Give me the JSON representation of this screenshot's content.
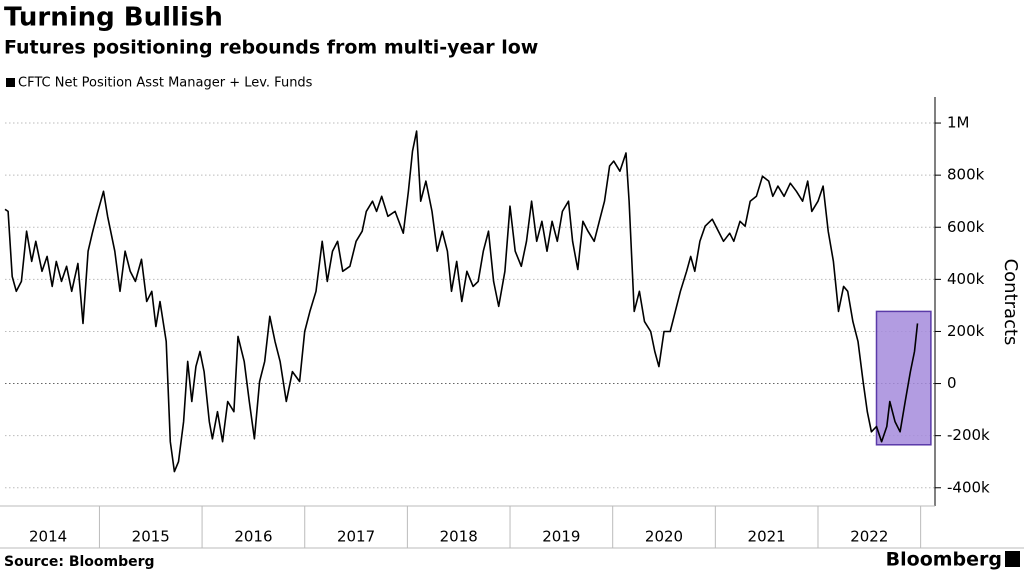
{
  "chart_data": {
    "type": "line",
    "title": "Turning Bullish",
    "subtitle": "Futures positioning rebounds from multi-year low",
    "y_label": "Contracts",
    "source": "Source: Bloomberg",
    "brand": "Bloomberg",
    "grid": true,
    "legend": "top-left",
    "x": [
      2014.08,
      2014.11,
      2014.15,
      2014.19,
      2014.24,
      2014.29,
      2014.34,
      2014.38,
      2014.44,
      2014.49,
      2014.54,
      2014.58,
      2014.63,
      2014.68,
      2014.73,
      2014.79,
      2014.84,
      2014.89,
      2014.93,
      2014.98,
      2015.04,
      2015.08,
      2015.15,
      2015.2,
      2015.25,
      2015.3,
      2015.35,
      2015.41,
      2015.46,
      2015.51,
      2015.55,
      2015.59,
      2015.65,
      2015.69,
      2015.73,
      2015.77,
      2015.82,
      2015.86,
      2015.9,
      2015.94,
      2015.98,
      2016.02,
      2016.07,
      2016.1,
      2016.15,
      2016.2,
      2016.25,
      2016.31,
      2016.35,
      2016.41,
      2016.46,
      2016.51,
      2016.56,
      2016.61,
      2016.66,
      2016.71,
      2016.76,
      2016.82,
      2016.88,
      2016.95,
      2017.0,
      2017.05,
      2017.11,
      2017.17,
      2017.22,
      2017.27,
      2017.32,
      2017.37,
      2017.44,
      2017.5,
      2017.56,
      2017.6,
      2017.66,
      2017.7,
      2017.75,
      2017.81,
      2017.88,
      2017.96,
      2018.01,
      2018.05,
      2018.09,
      2018.13,
      2018.18,
      2018.24,
      2018.29,
      2018.34,
      2018.39,
      2018.43,
      2018.48,
      2018.53,
      2018.58,
      2018.64,
      2018.69,
      2018.74,
      2018.79,
      2018.84,
      2018.89,
      2018.95,
      2019.0,
      2019.05,
      2019.11,
      2019.16,
      2019.21,
      2019.26,
      2019.31,
      2019.36,
      2019.41,
      2019.46,
      2019.51,
      2019.57,
      2019.61,
      2019.66,
      2019.71,
      2019.76,
      2019.82,
      2019.87,
      2019.92,
      2019.97,
      2020.01,
      2020.07,
      2020.13,
      2020.16,
      2020.21,
      2020.26,
      2020.31,
      2020.37,
      2020.41,
      2020.45,
      2020.5,
      2020.56,
      2020.61,
      2020.66,
      2020.72,
      2020.76,
      2020.8,
      2020.85,
      2020.9,
      2020.97,
      2021.03,
      2021.08,
      2021.14,
      2021.18,
      2021.24,
      2021.29,
      2021.34,
      2021.4,
      2021.46,
      2021.52,
      2021.56,
      2021.61,
      2021.67,
      2021.73,
      2021.79,
      2021.85,
      2021.9,
      2021.94,
      2022.0,
      2022.05,
      2022.1,
      2022.15,
      2022.2,
      2022.25,
      2022.29,
      2022.34,
      2022.39,
      2022.44,
      2022.48,
      2022.52,
      2022.57,
      2022.62,
      2022.67,
      2022.7,
      2022.75,
      2022.8,
      2022.85,
      2022.9,
      2022.94,
      2022.97
    ],
    "series": [
      {
        "name": "CFTC Net Position Asst Manager + Lev. Funds",
        "color": "#000000",
        "values": [
          669000,
          661000,
          411000,
          354000,
          392000,
          585000,
          469000,
          546000,
          431000,
          488000,
          373000,
          469000,
          392000,
          450000,
          354000,
          461000,
          231000,
          508000,
          577000,
          654000,
          738000,
          642000,
          508000,
          354000,
          508000,
          431000,
          392000,
          477000,
          315000,
          354000,
          219000,
          315000,
          162000,
          -223000,
          -338000,
          -300000,
          -146000,
          85000,
          -69000,
          65000,
          123000,
          46000,
          -146000,
          -212000,
          -108000,
          -223000,
          -69000,
          -108000,
          181000,
          85000,
          -69000,
          -212000,
          8000,
          85000,
          258000,
          162000,
          85000,
          -69000,
          46000,
          8000,
          200000,
          277000,
          354000,
          546000,
          392000,
          508000,
          546000,
          431000,
          450000,
          546000,
          585000,
          661000,
          700000,
          661000,
          719000,
          642000,
          661000,
          577000,
          738000,
          892000,
          969000,
          700000,
          777000,
          661000,
          508000,
          585000,
          508000,
          354000,
          469000,
          315000,
          431000,
          373000,
          392000,
          508000,
          585000,
          392000,
          296000,
          431000,
          681000,
          508000,
          450000,
          546000,
          700000,
          546000,
          623000,
          508000,
          623000,
          546000,
          661000,
          700000,
          546000,
          438000,
          623000,
          585000,
          546000,
          623000,
          700000,
          835000,
          854000,
          815000,
          885000,
          700000,
          277000,
          354000,
          238000,
          200000,
          123000,
          65000,
          200000,
          200000,
          277000,
          354000,
          431000,
          488000,
          431000,
          546000,
          604000,
          631000,
          585000,
          546000,
          577000,
          546000,
          623000,
          604000,
          700000,
          719000,
          796000,
          777000,
          719000,
          758000,
          719000,
          769000,
          738000,
          700000,
          777000,
          661000,
          700000,
          758000,
          585000,
          469000,
          277000,
          373000,
          354000,
          238000,
          162000,
          8000,
          -108000,
          -185000,
          -165000,
          -223000,
          -165000,
          -69000,
          -146000,
          -185000,
          -69000,
          46000,
          123000,
          231000
        ]
      }
    ],
    "highlight": {
      "x": [
        2022.57,
        2023.1
      ],
      "y": [
        -235000,
        277000
      ],
      "color": "#a58bdc"
    },
    "xlim": [
      2014.08,
      2023.14
    ],
    "xticks": [
      {
        "value": 2014.5,
        "label": "2014"
      },
      {
        "value": 2015.5,
        "label": "2015"
      },
      {
        "value": 2016.5,
        "label": "2016"
      },
      {
        "value": 2017.5,
        "label": "2017"
      },
      {
        "value": 2018.5,
        "label": "2018"
      },
      {
        "value": 2019.5,
        "label": "2019"
      },
      {
        "value": 2020.5,
        "label": "2020"
      },
      {
        "value": 2021.5,
        "label": "2021"
      },
      {
        "value": 2022.5,
        "label": "2022"
      }
    ],
    "ylim": [
      -470000,
      1100000
    ],
    "yticks": [
      {
        "value": -400000,
        "label": "-400k"
      },
      {
        "value": -200000,
        "label": "-200k"
      },
      0,
      {
        "value": 200000,
        "label": "200k"
      },
      {
        "value": 400000,
        "label": "400k"
      },
      {
        "value": 600000,
        "label": "600k"
      },
      {
        "value": 800000,
        "label": "800k"
      },
      {
        "value": 1000000,
        "label": "1M"
      }
    ]
  }
}
